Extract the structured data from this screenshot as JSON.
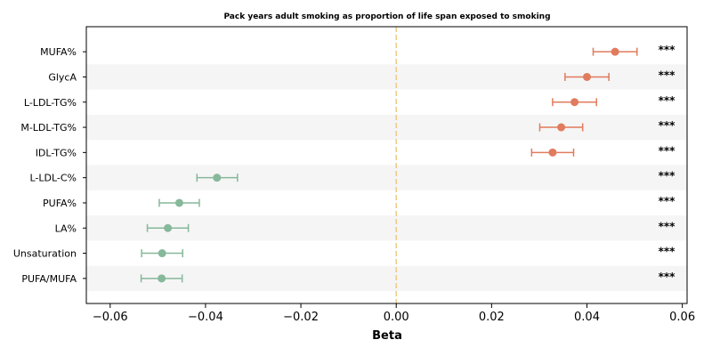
{
  "chart_data": {
    "type": "forest",
    "title": "Pack years adult smoking as proportion of life span exposed to smoking",
    "xlabel": "Beta",
    "xlim": [
      -0.065,
      0.061
    ],
    "xticks": [
      -0.06,
      -0.04,
      -0.02,
      0.0,
      0.02,
      0.04,
      0.06
    ],
    "xtick_labels": [
      "−0.06",
      "−0.04",
      "−0.02",
      "0.00",
      "0.02",
      "0.04",
      "0.06"
    ],
    "reference_line": 0.0,
    "grid": false,
    "alternating_row_shading": true,
    "rows": [
      {
        "label": "MUFA%",
        "beta": 0.0459,
        "lower": 0.0413,
        "upper": 0.0505,
        "sig": "***"
      },
      {
        "label": "GlycA",
        "beta": 0.04,
        "lower": 0.0354,
        "upper": 0.0446,
        "sig": "***"
      },
      {
        "label": "L-LDL-TG%",
        "beta": 0.0374,
        "lower": 0.0328,
        "upper": 0.042,
        "sig": "***"
      },
      {
        "label": "M-LDL-TG%",
        "beta": 0.0346,
        "lower": 0.0301,
        "upper": 0.0391,
        "sig": "***"
      },
      {
        "label": "IDL-TG%",
        "beta": 0.0328,
        "lower": 0.0284,
        "upper": 0.0372,
        "sig": "***"
      },
      {
        "label": "L-LDL-C%",
        "beta": -0.0376,
        "lower": -0.0418,
        "upper": -0.0333,
        "sig": "***"
      },
      {
        "label": "PUFA%",
        "beta": -0.0455,
        "lower": -0.0497,
        "upper": -0.0413,
        "sig": "***"
      },
      {
        "label": "LA%",
        "beta": -0.0479,
        "lower": -0.0522,
        "upper": -0.0436,
        "sig": "***"
      },
      {
        "label": "Unsaturation",
        "beta": -0.0491,
        "lower": -0.0534,
        "upper": -0.0448,
        "sig": "***"
      },
      {
        "label": "PUFA/MUFA",
        "beta": -0.0492,
        "lower": -0.0535,
        "upper": -0.0449,
        "sig": "***"
      }
    ],
    "colors": {
      "positive": "#e07b5d",
      "negative": "#86b89a",
      "reference_line": "#f0c987",
      "row_shade": "#f5f5f5",
      "axis": "#000000"
    }
  }
}
